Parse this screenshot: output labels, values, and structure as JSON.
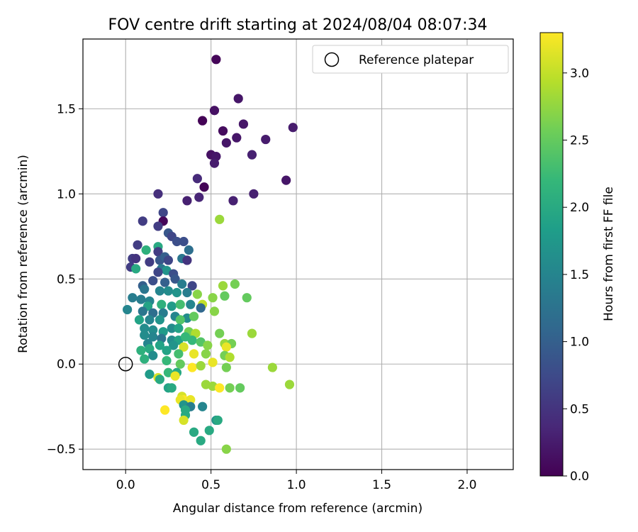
{
  "chart_data": {
    "type": "scatter",
    "title": "FOV centre drift starting at 2024/08/04 08:07:34",
    "xlabel": "Angular distance from reference (arcmin)",
    "ylabel": "Rotation from reference (arcmin)",
    "xlim": [
      -0.25,
      2.27
    ],
    "ylim": [
      -0.62,
      1.91
    ],
    "xticks": [
      0.0,
      0.5,
      1.0,
      1.5,
      2.0
    ],
    "xtick_labels": [
      "0.0",
      "0.5",
      "1.0",
      "1.5",
      "2.0"
    ],
    "yticks": [
      -0.5,
      0.0,
      0.5,
      1.0,
      1.5
    ],
    "ytick_labels": [
      "−0.5",
      "0.0",
      "0.5",
      "1.0",
      "1.5"
    ],
    "grid": true,
    "legend": {
      "position": "top-right",
      "label": "Reference platepar"
    },
    "reference_point": {
      "x": 0.0,
      "y": 0.0
    },
    "colorbar": {
      "label": "Hours from first FF file",
      "colormap": "viridis",
      "range": [
        0.0,
        3.3
      ],
      "ticks": [
        0.0,
        0.5,
        1.0,
        1.5,
        2.0,
        2.5,
        3.0
      ],
      "tick_labels": [
        "0.0",
        "0.5",
        "1.0",
        "1.5",
        "2.0",
        "2.5",
        "3.0"
      ]
    },
    "series": [
      {
        "color_value_unit": "hours",
        "points": [
          [
            0.53,
            1.79,
            0.05
          ],
          [
            0.66,
            1.56,
            0.2
          ],
          [
            0.52,
            1.49,
            0.15
          ],
          [
            0.45,
            1.43,
            0.02
          ],
          [
            0.69,
            1.41,
            0.2
          ],
          [
            0.98,
            1.39,
            0.25
          ],
          [
            0.57,
            1.37,
            0.1
          ],
          [
            0.65,
            1.33,
            0.2
          ],
          [
            0.82,
            1.32,
            0.25
          ],
          [
            0.59,
            1.3,
            0.2
          ],
          [
            0.5,
            1.23,
            0.15
          ],
          [
            0.53,
            1.22,
            0.2
          ],
          [
            0.74,
            1.23,
            0.3
          ],
          [
            0.52,
            1.18,
            0.25
          ],
          [
            0.42,
            1.09,
            0.4
          ],
          [
            0.94,
            1.08,
            0.2
          ],
          [
            0.46,
            1.04,
            0.03
          ],
          [
            0.19,
            1.0,
            0.45
          ],
          [
            0.75,
            1.0,
            0.3
          ],
          [
            0.43,
            0.98,
            0.35
          ],
          [
            0.36,
            0.96,
            0.3
          ],
          [
            0.63,
            0.96,
            0.3
          ],
          [
            0.55,
            0.85,
            2.8
          ],
          [
            0.1,
            0.84,
            0.6
          ],
          [
            0.22,
            0.89,
            0.7
          ],
          [
            0.22,
            0.84,
            0.05
          ],
          [
            0.19,
            0.81,
            0.6
          ],
          [
            0.25,
            0.77,
            0.9
          ],
          [
            0.27,
            0.75,
            0.7
          ],
          [
            0.3,
            0.72,
            0.8
          ],
          [
            0.34,
            0.72,
            0.8
          ],
          [
            0.19,
            0.69,
            2.0
          ],
          [
            0.37,
            0.67,
            1.2
          ],
          [
            0.07,
            0.7,
            0.6
          ],
          [
            0.12,
            0.67,
            2.1
          ],
          [
            0.19,
            0.66,
            0.6
          ],
          [
            0.04,
            0.62,
            0.6
          ],
          [
            0.06,
            0.62,
            0.5
          ],
          [
            0.14,
            0.6,
            0.6
          ],
          [
            0.2,
            0.61,
            0.9
          ],
          [
            0.23,
            0.63,
            1.0
          ],
          [
            0.25,
            0.61,
            0.7
          ],
          [
            0.33,
            0.62,
            1.3
          ],
          [
            0.36,
            0.61,
            0.5
          ],
          [
            0.03,
            0.57,
            0.6
          ],
          [
            0.06,
            0.56,
            2.0
          ],
          [
            0.21,
            0.56,
            1.3
          ],
          [
            0.24,
            0.55,
            1.7
          ],
          [
            0.19,
            0.54,
            0.7
          ],
          [
            0.28,
            0.53,
            0.8
          ],
          [
            0.29,
            0.5,
            0.9
          ],
          [
            0.23,
            0.48,
            1.0
          ],
          [
            0.16,
            0.49,
            0.8
          ],
          [
            0.33,
            0.47,
            1.4
          ],
          [
            0.39,
            0.46,
            0.7
          ],
          [
            0.1,
            0.46,
            1.0
          ],
          [
            0.11,
            0.44,
            1.3
          ],
          [
            0.2,
            0.43,
            1.5
          ],
          [
            0.25,
            0.43,
            1.6
          ],
          [
            0.3,
            0.42,
            1.7
          ],
          [
            0.36,
            0.42,
            1.4
          ],
          [
            0.42,
            0.41,
            2.7
          ],
          [
            0.51,
            0.39,
            2.7
          ],
          [
            0.57,
            0.46,
            2.8
          ],
          [
            0.64,
            0.47,
            2.6
          ],
          [
            0.58,
            0.4,
            2.5
          ],
          [
            0.71,
            0.39,
            2.5
          ],
          [
            0.04,
            0.39,
            1.4
          ],
          [
            0.09,
            0.38,
            1.4
          ],
          [
            0.14,
            0.37,
            1.5
          ],
          [
            0.21,
            0.35,
            2.1
          ],
          [
            0.27,
            0.34,
            1.8
          ],
          [
            0.32,
            0.35,
            2.3
          ],
          [
            0.38,
            0.35,
            1.5
          ],
          [
            0.45,
            0.35,
            3.0
          ],
          [
            0.44,
            0.33,
            1.1
          ],
          [
            0.13,
            0.34,
            1.9
          ],
          [
            0.01,
            0.32,
            1.5
          ],
          [
            0.1,
            0.31,
            1.3
          ],
          [
            0.16,
            0.3,
            1.2
          ],
          [
            0.22,
            0.3,
            1.4
          ],
          [
            0.29,
            0.28,
            1.5
          ],
          [
            0.36,
            0.27,
            1.6
          ],
          [
            0.4,
            0.28,
            2.5
          ],
          [
            0.52,
            0.31,
            2.7
          ],
          [
            0.08,
            0.26,
            1.9
          ],
          [
            0.14,
            0.26,
            1.5
          ],
          [
            0.2,
            0.26,
            1.7
          ],
          [
            0.32,
            0.26,
            2.4
          ],
          [
            0.11,
            0.21,
            1.6
          ],
          [
            0.16,
            0.2,
            1.6
          ],
          [
            0.22,
            0.19,
            1.8
          ],
          [
            0.27,
            0.21,
            1.6
          ],
          [
            0.31,
            0.21,
            1.9
          ],
          [
            0.37,
            0.19,
            2.6
          ],
          [
            0.41,
            0.18,
            2.9
          ],
          [
            0.55,
            0.18,
            2.6
          ],
          [
            0.74,
            0.18,
            2.8
          ],
          [
            0.11,
            0.17,
            1.6
          ],
          [
            0.16,
            0.16,
            1.5
          ],
          [
            0.21,
            0.15,
            1.3
          ],
          [
            0.27,
            0.14,
            1.6
          ],
          [
            0.31,
            0.14,
            1.9
          ],
          [
            0.35,
            0.16,
            2.2
          ],
          [
            0.39,
            0.14,
            2.2
          ],
          [
            0.44,
            0.13,
            2.4
          ],
          [
            0.58,
            0.12,
            2.8
          ],
          [
            0.62,
            0.12,
            2.6
          ],
          [
            0.13,
            0.12,
            1.5
          ],
          [
            0.2,
            0.11,
            1.9
          ],
          [
            0.28,
            0.11,
            1.7
          ],
          [
            0.34,
            0.1,
            3.1
          ],
          [
            0.48,
            0.11,
            2.7
          ],
          [
            0.59,
            0.1,
            3.2
          ],
          [
            0.09,
            0.08,
            2.1
          ],
          [
            0.14,
            0.09,
            2.0
          ],
          [
            0.24,
            0.08,
            1.9
          ],
          [
            0.31,
            0.06,
            2.3
          ],
          [
            0.4,
            0.06,
            3.2
          ],
          [
            0.47,
            0.06,
            2.7
          ],
          [
            0.58,
            0.05,
            2.6
          ],
          [
            0.61,
            0.04,
            2.9
          ],
          [
            0.11,
            0.03,
            2.1
          ],
          [
            0.16,
            0.05,
            1.6
          ],
          [
            0.24,
            0.02,
            2.2
          ],
          [
            0.32,
            0.0,
            2.5
          ],
          [
            0.39,
            -0.02,
            3.3
          ],
          [
            0.44,
            -0.01,
            2.8
          ],
          [
            0.51,
            0.01,
            3.2
          ],
          [
            0.59,
            -0.02,
            2.6
          ],
          [
            0.86,
            -0.02,
            2.8
          ],
          [
            0.14,
            -0.06,
            1.8
          ],
          [
            0.19,
            -0.08,
            3.1
          ],
          [
            0.25,
            -0.05,
            2.2
          ],
          [
            0.3,
            -0.05,
            2.0
          ],
          [
            0.29,
            -0.07,
            3.2
          ],
          [
            0.2,
            -0.09,
            2.0
          ],
          [
            0.47,
            -0.12,
            2.8
          ],
          [
            0.51,
            -0.13,
            2.8
          ],
          [
            0.55,
            -0.14,
            3.3
          ],
          [
            0.61,
            -0.14,
            2.6
          ],
          [
            0.67,
            -0.14,
            2.5
          ],
          [
            0.96,
            -0.12,
            2.8
          ],
          [
            0.25,
            -0.14,
            1.9
          ],
          [
            0.27,
            -0.14,
            2.0
          ],
          [
            0.33,
            -0.19,
            3.1
          ],
          [
            0.34,
            -0.21,
            3.3
          ],
          [
            0.37,
            -0.23,
            3.3
          ],
          [
            0.38,
            -0.21,
            3.2
          ],
          [
            0.32,
            -0.21,
            3.2
          ],
          [
            0.34,
            -0.24,
            1.7
          ],
          [
            0.38,
            -0.25,
            1.4
          ],
          [
            0.45,
            -0.25,
            1.5
          ],
          [
            0.23,
            -0.27,
            3.3
          ],
          [
            0.35,
            -0.27,
            2.0
          ],
          [
            0.35,
            -0.3,
            2.0
          ],
          [
            0.53,
            -0.33,
            1.7
          ],
          [
            0.54,
            -0.33,
            2.0
          ],
          [
            0.34,
            -0.33,
            3.1
          ],
          [
            0.4,
            -0.4,
            2.0
          ],
          [
            0.49,
            -0.39,
            2.0
          ],
          [
            0.44,
            -0.45,
            2.0
          ],
          [
            0.59,
            -0.5,
            2.7
          ]
        ]
      }
    ]
  }
}
